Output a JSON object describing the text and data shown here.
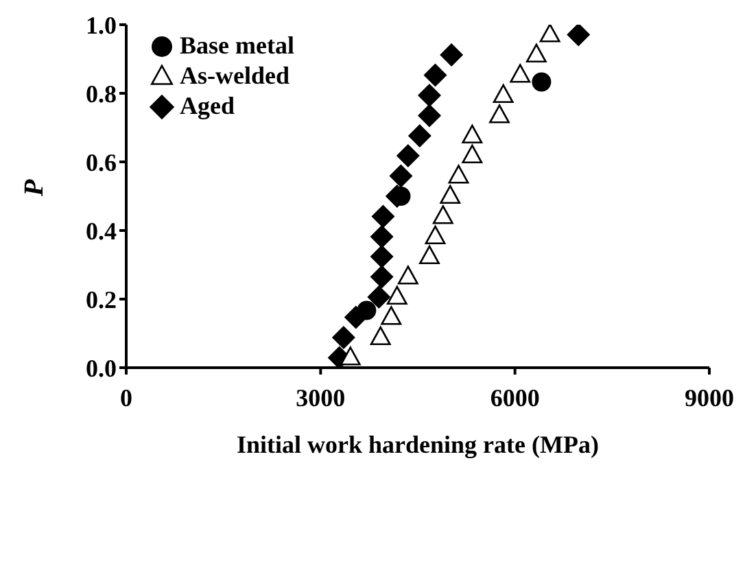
{
  "chart_data": {
    "type": "scatter",
    "xlabel": "Initial work hardening rate (MPa)",
    "ylabel": "P",
    "xlim": [
      0,
      9000
    ],
    "xticks": [
      0,
      3000,
      6000,
      9000
    ],
    "ylim": [
      0,
      1
    ],
    "yticks": [
      {
        "value": 0,
        "label": "0.0"
      },
      0.2,
      0.4,
      0.6,
      0.8,
      {
        "value": 1,
        "label": "1.0"
      }
    ],
    "grid": false,
    "legend": "top left",
    "series": [
      {
        "name": "Base metal",
        "color": "#000000",
        "marker": "circle",
        "x": [
          3710,
          4240,
          6410
        ],
        "values": [
          0.167,
          0.5,
          0.833
        ]
      },
      {
        "name": "As-welded",
        "color": "#000000",
        "marker": "triangle",
        "x": [
          3460,
          3925,
          4090,
          4180,
          4350,
          4680,
          4770,
          4890,
          5000,
          5130,
          5340,
          5340,
          5760,
          5820,
          6080,
          6330,
          6540
        ],
        "values": [
          0.029,
          0.088,
          0.147,
          0.206,
          0.265,
          0.324,
          0.382,
          0.441,
          0.5,
          0.559,
          0.618,
          0.676,
          0.735,
          0.794,
          0.853,
          0.912,
          0.971
        ]
      },
      {
        "name": "Aged",
        "color": "#000000",
        "marker": "diamond",
        "x": [
          3290,
          3355,
          3545,
          3900,
          3945,
          3945,
          3945,
          3965,
          4180,
          4240,
          4350,
          4530,
          4680,
          4680,
          4770,
          5020,
          6980
        ],
        "values": [
          0.029,
          0.088,
          0.147,
          0.206,
          0.265,
          0.324,
          0.382,
          0.441,
          0.5,
          0.559,
          0.618,
          0.676,
          0.735,
          0.794,
          0.853,
          0.912,
          0.971
        ]
      }
    ]
  }
}
